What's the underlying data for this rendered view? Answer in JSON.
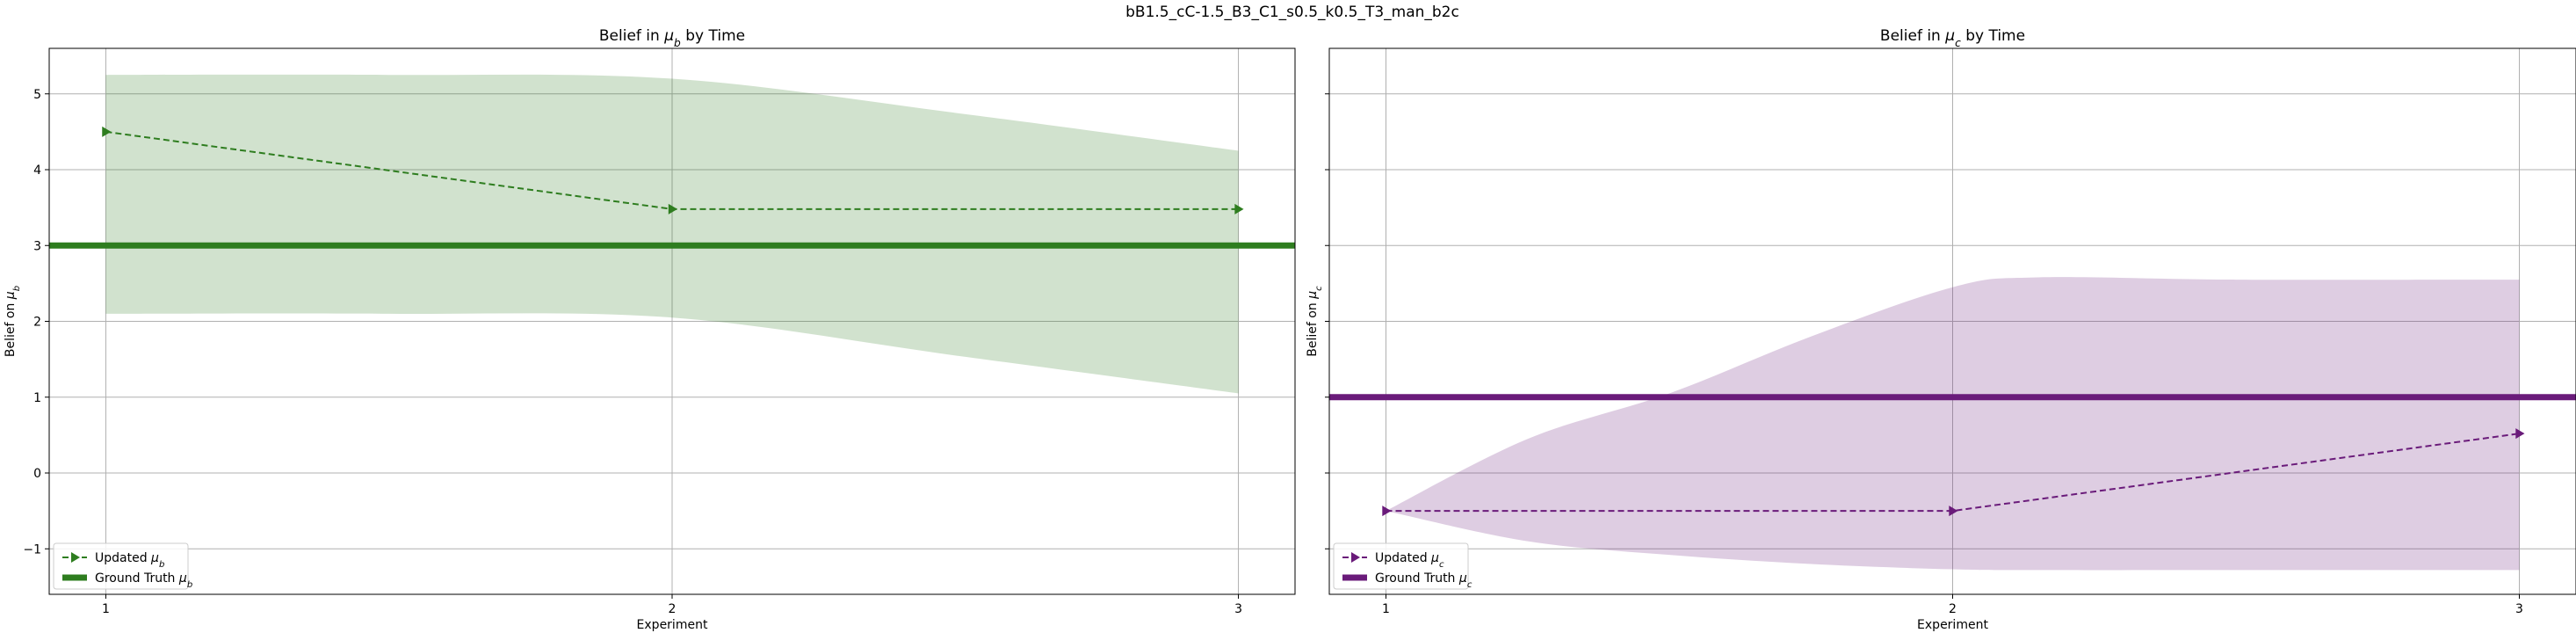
{
  "suptitle": "bB1.5_cC-1.5_B3_C1_s0.5_k0.5_T3_man_b2c",
  "chart_data": [
    {
      "type": "line",
      "title": "Belief in μ_b by Time",
      "title_parts": {
        "pre": "Belief in ",
        "sym": "μ",
        "sub": "b",
        "post": " by Time"
      },
      "xlabel": "Experiment",
      "ylabel": "Belief on μ_b",
      "ylabel_parts": {
        "pre": "Belief on ",
        "sym": "μ",
        "sub": "b"
      },
      "x": [
        1,
        2,
        3
      ],
      "xticks": [
        "1",
        "2",
        "3"
      ],
      "xlim": [
        0.9,
        3.1
      ],
      "yticks": [
        -1,
        0,
        1,
        2,
        3,
        4,
        5
      ],
      "ylim": [
        -1.6,
        5.6
      ],
      "grid": true,
      "legend": "lower-left",
      "band": {
        "x": [
          1,
          1.5,
          2,
          2.5,
          3
        ],
        "lower": [
          2.1,
          2.1,
          2.05,
          1.55,
          1.05
        ],
        "upper": [
          5.25,
          5.25,
          5.2,
          4.75,
          4.25
        ],
        "color": "#2e7d1f",
        "opacity": 0.22
      },
      "series": [
        {
          "name": "Updated μ_b",
          "name_parts": {
            "pre": "Updated ",
            "sym": "μ",
            "sub": "b"
          },
          "values": [
            4.5,
            3.48,
            3.48
          ],
          "color": "#2e7d1f",
          "style": "dashed",
          "marker": "triangle-right"
        }
      ],
      "ground_truth": {
        "name": "Ground Truth μ_b",
        "name_parts": {
          "pre": "Ground Truth ",
          "sym": "μ",
          "sub": "b"
        },
        "value": 3,
        "color": "#2e7d1f"
      }
    },
    {
      "type": "line",
      "title": "Belief in μ_c by Time",
      "title_parts": {
        "pre": "Belief in ",
        "sym": "μ",
        "sub": "c",
        "post": " by Time"
      },
      "xlabel": "Experiment",
      "ylabel": "Belief on μ_c",
      "ylabel_parts": {
        "pre": "Belief on ",
        "sym": "μ",
        "sub": "c"
      },
      "x": [
        1,
        2,
        3
      ],
      "xticks": [
        "1",
        "2",
        "3"
      ],
      "xlim": [
        0.9,
        3.1
      ],
      "yticks": [
        -1,
        0,
        1,
        2,
        3,
        4,
        5
      ],
      "ylim": [
        -1.6,
        5.6
      ],
      "grid": true,
      "legend": "lower-left",
      "band": {
        "x": [
          1,
          1.25,
          1.5,
          1.75,
          2,
          2.15,
          2.5,
          3
        ],
        "lower": [
          -0.5,
          -0.9,
          -1.08,
          -1.2,
          -1.27,
          -1.28,
          -1.28,
          -1.28
        ],
        "upper": [
          -0.5,
          0.45,
          1.05,
          1.8,
          2.45,
          2.58,
          2.55,
          2.55
        ],
        "color": "#6a1b7a",
        "opacity": 0.22
      },
      "series": [
        {
          "name": "Updated μ_c",
          "name_parts": {
            "pre": "Updated ",
            "sym": "μ",
            "sub": "c"
          },
          "values": [
            -0.5,
            -0.5,
            0.52
          ],
          "color": "#6a1b7a",
          "style": "dashed",
          "marker": "triangle-right"
        }
      ],
      "ground_truth": {
        "name": "Ground Truth μ_c",
        "name_parts": {
          "pre": "Ground Truth ",
          "sym": "μ",
          "sub": "c"
        },
        "value": 1,
        "color": "#6a1b7a"
      }
    }
  ]
}
